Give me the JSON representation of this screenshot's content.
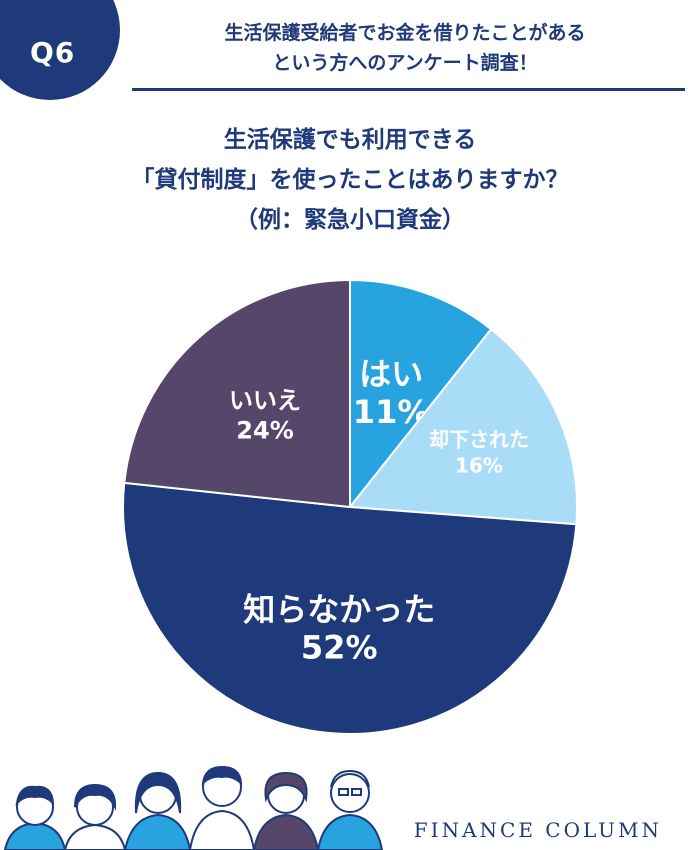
{
  "badge": {
    "label": "Q6"
  },
  "header": {
    "line1": "生活保護受給者でお金を借りたことがある",
    "line2": "という方へのアンケート調査！"
  },
  "question": {
    "line1": "生活保護でも利用できる",
    "line2": "「貸付制度」を使ったことはありますか？",
    "line3": "（例：緊急小口資金）"
  },
  "chart_data": {
    "type": "pie",
    "slices": [
      {
        "label": "はい",
        "value": 11,
        "display": "11%",
        "color": "#27a3e0"
      },
      {
        "label": "却下された",
        "value": 16,
        "display": "16%",
        "color": "#a9dcf6"
      },
      {
        "label": "知らなかった",
        "value": 52,
        "display": "52%",
        "color": "#1f3a7a"
      },
      {
        "label": "いいえ",
        "value": 24,
        "display": "24%",
        "color": "#55466a"
      }
    ]
  },
  "footer": {
    "brand": "FINANCE COLUMN"
  },
  "colors": {
    "primary": "#1f3a7a"
  }
}
